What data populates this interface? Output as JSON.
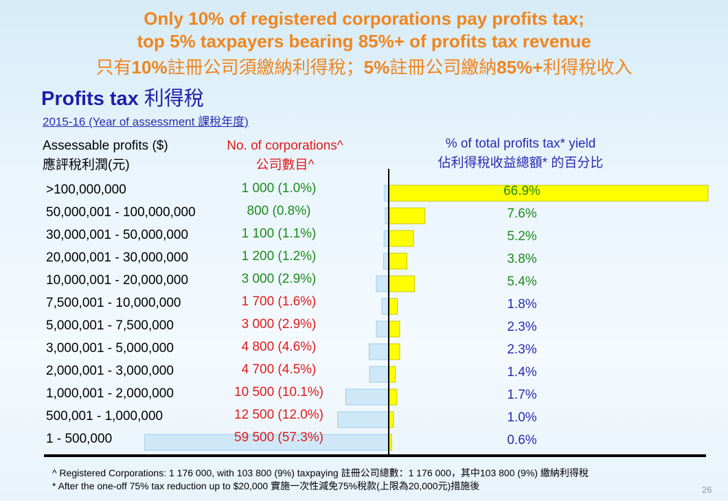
{
  "title": {
    "line1": "Only 10% of registered corporations pay profits tax;",
    "line2": "top 5% taxpayers bearing 85%+ of profits tax revenue",
    "line3_parts": [
      "只有",
      "10%",
      "註冊公司須繳納利得稅；",
      "5%",
      "註冊公司繳納",
      "85%+",
      "利得稅收入"
    ]
  },
  "subtitle": {
    "en": "Profits tax",
    "zh": "利得稅"
  },
  "year_label": "2015-16 (Year of assessment 課稅年度)",
  "headers": {
    "profits_en": "Assessable profits ($)",
    "profits_zh": "應評稅利潤(元)",
    "corps_en": "No. of corporations^",
    "corps_zh": "公司數目^",
    "yield_en": "% of total profits tax* yield",
    "yield_zh": "佔利得稅收益總額* 的百分比"
  },
  "colors": {
    "corp_green": "#1c8a1c",
    "corp_red": "#e01b1b",
    "yield_green": "#1c8a1c",
    "yield_blue": "#2a2ab0",
    "left_bar_fill": "#cfe8f8",
    "left_bar_stroke": "#9ccbe8",
    "right_bar_fill": "#ffff00",
    "right_bar_stroke": "#c8c800"
  },
  "chart_data": {
    "type": "bar",
    "categories": [
      ">100,000,000",
      "50,000,001 - 100,000,000",
      "30,000,001 - 50,000,000",
      "20,000,001 - 30,000,000",
      "10,000,001 - 20,000,000",
      "7,500,001 - 10,000,000",
      "5,000,001 - 7,500,000",
      "3,000,001 - 5,000,000",
      "2,000,001 - 3,000,000",
      "1,000,001 - 2,000,000",
      "500,001 - 1,000,000",
      "1 - 500,000"
    ],
    "corporations_labels": [
      "1 000 (1.0%)",
      "800 (0.8%)",
      "1 100 (1.1%)",
      "1 200 (1.2%)",
      "3 000 (2.9%)",
      "1 700 (1.6%)",
      "3 000 (2.9%)",
      "4 800 (4.6%)",
      "4 700 (4.5%)",
      "10 500 (10.1%)",
      "12 500 (12.0%)",
      "59 500 (57.3%)"
    ],
    "corporations_pct": [
      1.0,
      0.8,
      1.1,
      1.2,
      2.9,
      1.6,
      2.9,
      4.6,
      4.5,
      10.1,
      12.0,
      57.3
    ],
    "corporations_color": [
      "green",
      "green",
      "green",
      "green",
      "green",
      "red",
      "red",
      "red",
      "red",
      "red",
      "red",
      "red"
    ],
    "yield_labels": [
      "66.9%",
      "7.6%",
      "5.2%",
      "3.8%",
      "5.4%",
      "1.8%",
      "2.3%",
      "2.3%",
      "1.4%",
      "1.7%",
      "1.0%",
      "0.6%"
    ],
    "yield_pct": [
      66.9,
      7.6,
      5.2,
      3.8,
      5.4,
      1.8,
      2.3,
      2.3,
      1.4,
      1.7,
      1.0,
      0.6
    ],
    "yield_color": [
      "green",
      "green",
      "green",
      "green",
      "green",
      "blue",
      "blue",
      "blue",
      "blue",
      "blue",
      "blue",
      "blue"
    ]
  },
  "footnotes": {
    "caret": "^ Registered Corporations: 1 176 000, with 103 800 (9%) taxpaying 註冊公司總數：1 176 000，其中103 800 (9%) 繳納利得稅",
    "star": "* After the one-off 75% tax reduction up to $20,000 實施一次性減免75%稅款(上限為20,000元)措施後"
  },
  "page_number": "26"
}
